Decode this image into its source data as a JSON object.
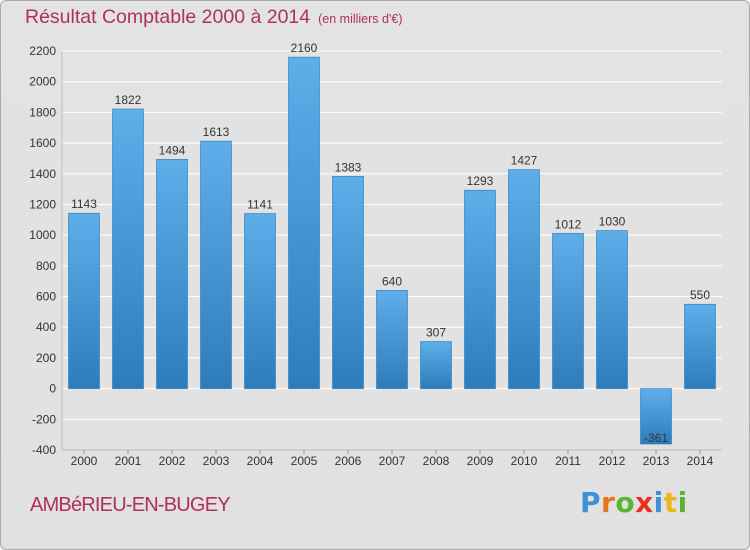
{
  "title": "Résultat Comptable 2000 à 2014",
  "subtitle": "(en milliers d'€)",
  "location": "AMBéRIEU-EN-BUGEY",
  "logo": {
    "letters": [
      "P",
      "r",
      "o",
      "x",
      "i",
      "t",
      "i"
    ],
    "colors": [
      "#3d8fd6",
      "#e8751a",
      "#58b530",
      "#e8311a",
      "#3d8fd6",
      "#e8b61a",
      "#58b530"
    ]
  },
  "colors": {
    "bar_top": "#5eaeea",
    "bar_bottom": "#2d7dbd",
    "grid": "#ffffff",
    "axis_text": "#333333",
    "title": "#b0305c"
  },
  "chart_data": {
    "type": "bar",
    "title": "Résultat Comptable 2000 à 2014",
    "subtitle": "(en milliers d'€)",
    "xlabel": "",
    "ylabel": "",
    "categories": [
      "2000",
      "2001",
      "2002",
      "2003",
      "2004",
      "2005",
      "2006",
      "2007",
      "2008",
      "2009",
      "2010",
      "2011",
      "2012",
      "2013",
      "2014"
    ],
    "values": [
      1143,
      1822,
      1494,
      1613,
      1141,
      2160,
      1383,
      640,
      307,
      1293,
      1427,
      1012,
      1030,
      -361,
      550
    ],
    "value_labels": [
      "1143",
      "1822",
      "1494",
      "1613",
      "1141",
      "2160",
      "1383",
      "640",
      "307",
      "1293",
      "1427",
      "1012",
      "1030",
      "-361",
      "550"
    ],
    "ylim": [
      -400,
      2200
    ],
    "yticks": [
      -400,
      -200,
      0,
      200,
      400,
      600,
      800,
      1000,
      1200,
      1400,
      1600,
      1800,
      2000,
      2200
    ],
    "grid": true,
    "legend": "none"
  }
}
